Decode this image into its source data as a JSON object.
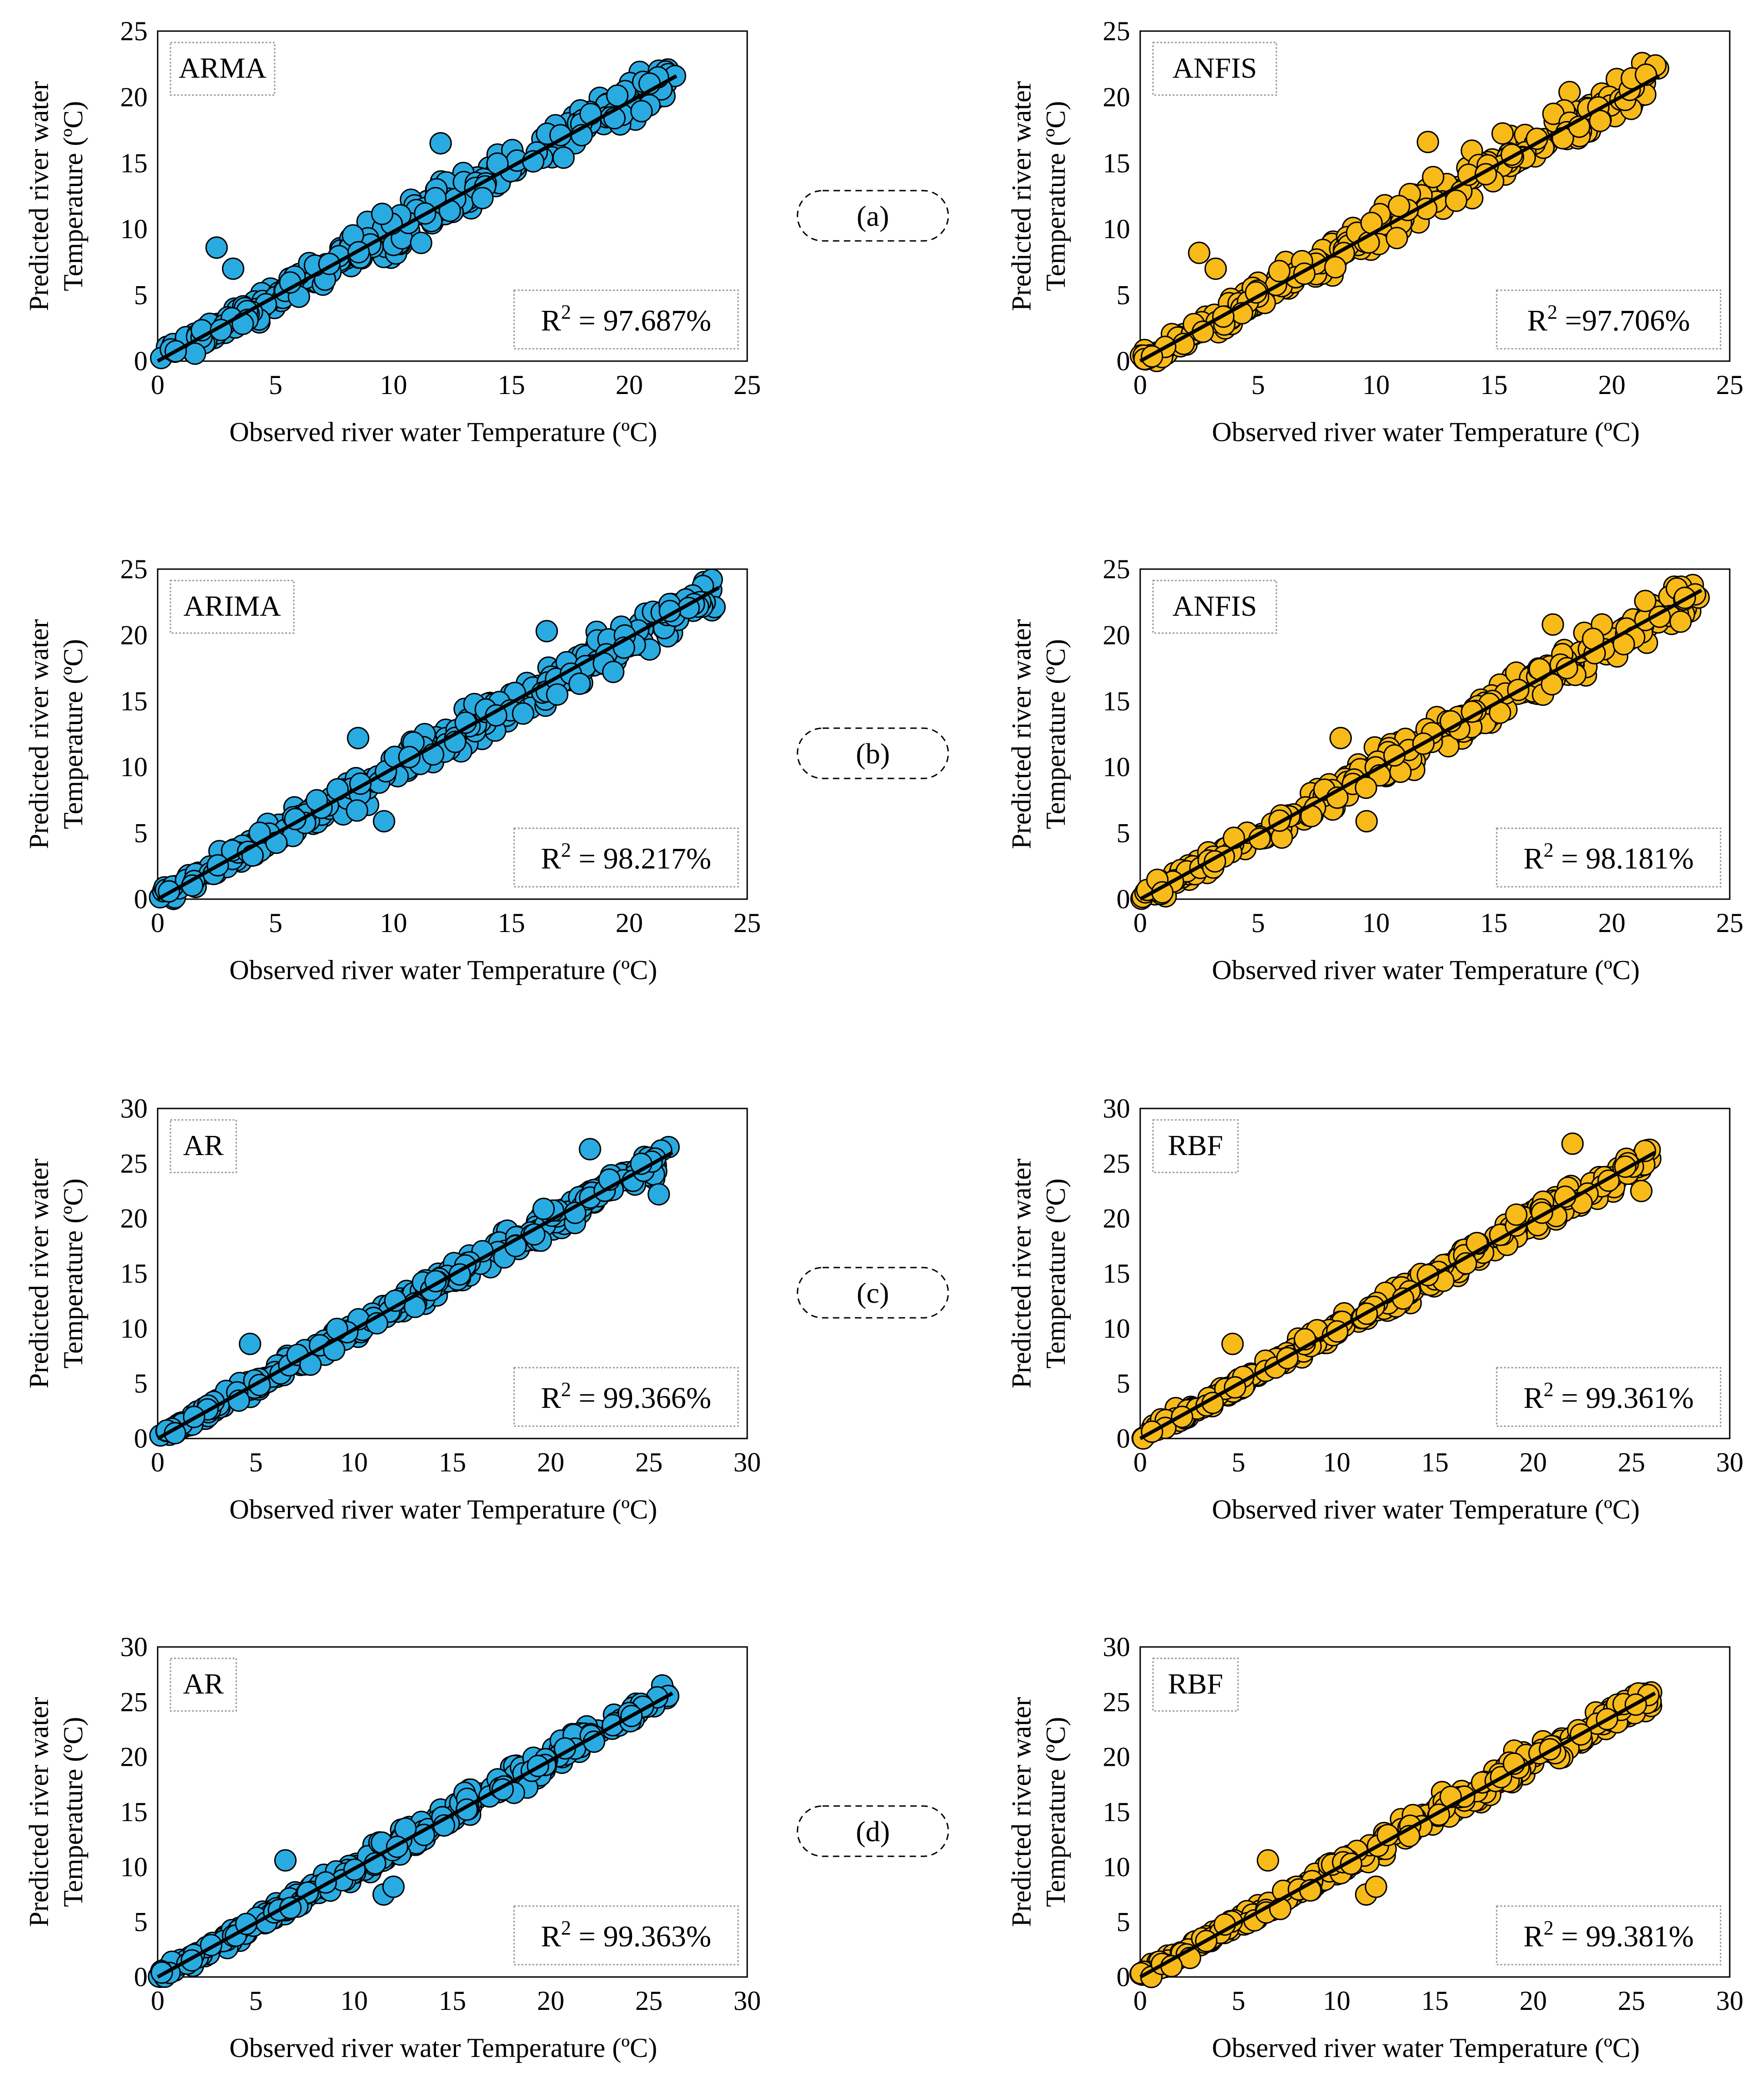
{
  "figure": {
    "rows": [
      {
        "label": "(a)",
        "panels": [
          0,
          1
        ]
      },
      {
        "label": "(b)",
        "panels": [
          2,
          3
        ]
      },
      {
        "label": "(c)",
        "panels": [
          4,
          5
        ]
      },
      {
        "label": "(d)",
        "panels": [
          6,
          7
        ]
      }
    ]
  },
  "colors": {
    "blue": "#29ABE2",
    "gold": "#F7BA19",
    "line": "#000000"
  },
  "chart_data": [
    {
      "type": "scatter",
      "model": "ARMA",
      "r2_text": "97.687%",
      "r2_sep": " = ",
      "color": "blue",
      "xlabel": "Observed river water Temperature (ºC)",
      "ylabel_1": "Predicted river water",
      "ylabel_2": "Temperature (ºC)",
      "xlim": [
        0,
        25
      ],
      "ylim": [
        0,
        25
      ],
      "ticks": [
        0,
        5,
        10,
        15,
        20,
        25
      ],
      "fit": [
        [
          0,
          0
        ],
        [
          22,
          21.6
        ]
      ],
      "spread": 1.4,
      "xmax": 22,
      "outliers": [
        [
          2.5,
          8.6
        ],
        [
          12,
          16.5
        ],
        [
          3.2,
          7
        ]
      ]
    },
    {
      "type": "scatter",
      "model": "ANFIS",
      "r2_text": "97.706%",
      "r2_sep": " =",
      "color": "gold",
      "xlabel": "Observed river water Temperature (ºC)",
      "ylabel_1": "Predicted river water",
      "ylabel_2": "Temperature (ºC)",
      "xlim": [
        0,
        25
      ],
      "ylim": [
        0,
        25
      ],
      "ticks": [
        0,
        5,
        10,
        15,
        20,
        25
      ],
      "fit": [
        [
          0,
          0
        ],
        [
          22,
          21.6
        ]
      ],
      "spread": 1.4,
      "xmax": 22,
      "outliers": [
        [
          2.5,
          8.2
        ],
        [
          12.2,
          16.6
        ],
        [
          3.2,
          7
        ]
      ]
    },
    {
      "type": "scatter",
      "model": "ARIMA",
      "r2_text": "98.217%",
      "r2_sep": " = ",
      "color": "blue",
      "xlabel": "Observed river water Temperature (ºC)",
      "ylabel_1": "Predicted river water",
      "ylabel_2": "Temperature (ºC)",
      "xlim": [
        0,
        25
      ],
      "ylim": [
        0,
        25
      ],
      "ticks": [
        0,
        5,
        10,
        15,
        20,
        25
      ],
      "fit": [
        [
          0,
          0
        ],
        [
          23.8,
          23.6
        ]
      ],
      "spread": 1.3,
      "xmax": 23.8,
      "outliers": [
        [
          9.6,
          5.9
        ],
        [
          16.5,
          20.3
        ],
        [
          8.5,
          12.2
        ]
      ]
    },
    {
      "type": "scatter",
      "model": "ANFIS",
      "r2_text": "98.181%",
      "r2_sep": " = ",
      "color": "gold",
      "xlabel": "Observed river water Temperature (ºC)",
      "ylabel_1": "Predicted river water",
      "ylabel_2": "Temperature (ºC)",
      "xlim": [
        0,
        25
      ],
      "ylim": [
        0,
        25
      ],
      "ticks": [
        0,
        5,
        10,
        15,
        20,
        25
      ],
      "fit": [
        [
          0,
          0
        ],
        [
          23.8,
          23.4
        ]
      ],
      "spread": 1.3,
      "xmax": 23.8,
      "outliers": [
        [
          9.6,
          5.9
        ],
        [
          17.5,
          20.8
        ],
        [
          8.5,
          12.2
        ]
      ]
    },
    {
      "type": "scatter",
      "model": "AR",
      "r2_text": "99.366%",
      "r2_sep": " = ",
      "color": "blue",
      "xlabel": "Observed river water Temperature (ºC)",
      "ylabel_1": "Predicted river water",
      "ylabel_2": "Temperature (ºC)",
      "xlim": [
        0,
        30
      ],
      "ylim": [
        0,
        30
      ],
      "ticks": [
        0,
        5,
        10,
        15,
        20,
        25,
        30
      ],
      "fit": [
        [
          0,
          0
        ],
        [
          26.2,
          26
        ]
      ],
      "spread": 1.0,
      "xmax": 26,
      "outliers": [
        [
          22,
          26.3
        ],
        [
          25.5,
          22.2
        ],
        [
          4.7,
          8.6
        ]
      ]
    },
    {
      "type": "scatter",
      "model": "RBF",
      "r2_text": "99.361%",
      "r2_sep": " = ",
      "color": "gold",
      "xlabel": "Observed river water Temperature (ºC)",
      "ylabel_1": "Predicted river water",
      "ylabel_2": "Temperature (ºC)",
      "xlim": [
        0,
        30
      ],
      "ylim": [
        0,
        30
      ],
      "ticks": [
        0,
        5,
        10,
        15,
        20,
        25,
        30
      ],
      "fit": [
        [
          0,
          0
        ],
        [
          26.2,
          26
        ]
      ],
      "spread": 1.0,
      "xmax": 26,
      "outliers": [
        [
          22,
          26.8
        ],
        [
          25.5,
          22.5
        ],
        [
          4.7,
          8.6
        ]
      ]
    },
    {
      "type": "scatter",
      "model": "AR",
      "r2_text": "99.363%",
      "r2_sep": " = ",
      "color": "blue",
      "xlabel": "Observed river water Temperature (ºC)",
      "ylabel_1": "Predicted river water",
      "ylabel_2": "Temperature (ºC)",
      "xlim": [
        0,
        30
      ],
      "ylim": [
        0,
        30
      ],
      "ticks": [
        0,
        5,
        10,
        15,
        20,
        25,
        30
      ],
      "fit": [
        [
          0,
          0
        ],
        [
          26.2,
          25.8
        ]
      ],
      "spread": 1.0,
      "xmax": 26,
      "outliers": [
        [
          11.5,
          7.5
        ],
        [
          12,
          8.2
        ],
        [
          6.5,
          10.6
        ]
      ]
    },
    {
      "type": "scatter",
      "model": "RBF",
      "r2_text": "99.381%",
      "r2_sep": " = ",
      "color": "gold",
      "xlabel": "Observed river water Temperature (ºC)",
      "ylabel_1": "Predicted river water",
      "ylabel_2": "Temperature (ºC)",
      "xlim": [
        0,
        30
      ],
      "ylim": [
        0,
        30
      ],
      "ticks": [
        0,
        5,
        10,
        15,
        20,
        25,
        30
      ],
      "fit": [
        [
          0,
          0
        ],
        [
          26.2,
          25.8
        ]
      ],
      "spread": 1.0,
      "xmax": 26,
      "outliers": [
        [
          11.5,
          7.5
        ],
        [
          12,
          8.2
        ],
        [
          6.5,
          10.6
        ]
      ]
    }
  ]
}
